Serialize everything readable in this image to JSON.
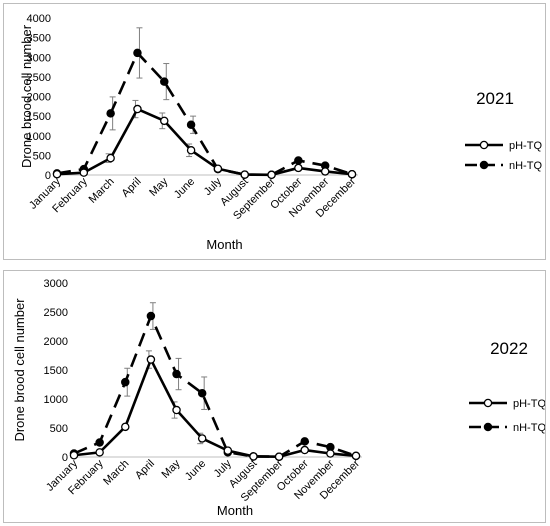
{
  "chart_data": [
    {
      "type": "line",
      "title": "2021",
      "xlabel": "Month",
      "ylabel": "Drone brood cell number",
      "ylim": [
        0,
        4000
      ],
      "yticks": [
        0,
        500,
        1000,
        1500,
        2000,
        2500,
        3000,
        3500,
        4000
      ],
      "grid": false,
      "legend_position": "right",
      "categories": [
        "January",
        "February",
        "March",
        "April",
        "May",
        "June",
        "July",
        "August",
        "September",
        "October",
        "November",
        "December"
      ],
      "series": [
        {
          "name": "pH-TQ",
          "style": "solid",
          "marker": "open-circle",
          "color": "#000000",
          "values": [
            20,
            60,
            430,
            1680,
            1380,
            630,
            160,
            10,
            5,
            180,
            90,
            20
          ],
          "error": [
            0,
            0,
            110,
            220,
            200,
            160,
            0,
            0,
            0,
            0,
            0,
            0
          ]
        },
        {
          "name": "nH-TQ",
          "style": "dashed",
          "marker": "filled-circle",
          "color": "#000000",
          "values": [
            40,
            150,
            1570,
            3110,
            2380,
            1280,
            150,
            10,
            5,
            370,
            240,
            20
          ],
          "error": [
            0,
            0,
            420,
            640,
            460,
            220,
            0,
            0,
            0,
            0,
            0,
            0
          ]
        }
      ]
    },
    {
      "type": "line",
      "title": "2022",
      "xlabel": "Month",
      "ylabel": "Drone brood cell number",
      "ylim": [
        0,
        3000
      ],
      "yticks": [
        0,
        500,
        1000,
        1500,
        2000,
        2500,
        3000
      ],
      "grid": false,
      "legend_position": "right",
      "categories": [
        "January",
        "February",
        "March",
        "April",
        "May",
        "June",
        "July",
        "August",
        "September",
        "October",
        "November",
        "December"
      ],
      "series": [
        {
          "name": "pH-TQ",
          "style": "solid",
          "marker": "open-circle",
          "color": "#000000",
          "values": [
            30,
            80,
            520,
            1680,
            810,
            320,
            110,
            10,
            5,
            120,
            60,
            20
          ],
          "error": [
            0,
            0,
            0,
            150,
            140,
            90,
            0,
            0,
            0,
            0,
            0,
            0
          ]
        },
        {
          "name": "nH-TQ",
          "style": "dashed",
          "marker": "filled-circle",
          "color": "#000000",
          "values": [
            60,
            250,
            1290,
            2430,
            1430,
            1100,
            80,
            10,
            5,
            270,
            170,
            20
          ],
          "error": [
            0,
            0,
            240,
            230,
            270,
            280,
            0,
            0,
            0,
            0,
            0,
            0
          ]
        }
      ]
    }
  ]
}
